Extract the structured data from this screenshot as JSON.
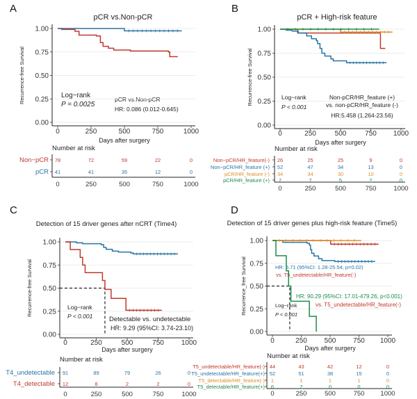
{
  "colors": {
    "red": "#c0392b",
    "blue": "#2874a6",
    "orange": "#e08e2b",
    "green": "#1e8a4c",
    "grid": "#e6e6e6"
  },
  "chart_data": [
    {
      "panel": "A",
      "type": "line",
      "subtype": "kaplan-meier",
      "title": "pCR vs.Non-pCR",
      "xlabel": "Days after surgery",
      "ylabel": "Recurrence-free Survival",
      "xlim": [
        0,
        1000
      ],
      "ylim": [
        0,
        1
      ],
      "xticks": [
        "0",
        "250",
        "500",
        "750",
        "1000"
      ],
      "yticks": [
        "0.00",
        "0.25",
        "0.50",
        "0.75",
        "1.00"
      ],
      "grid": true,
      "annotations": {
        "test": "Log−rank",
        "p": "P = 0.0025",
        "comparison": "pCR vs.Non-pCR",
        "hr": "HR: 0.086 (0.012-0.645)"
      },
      "risk_title": "Number at risk",
      "series": [
        {
          "name": "Non−pCR",
          "color": "red",
          "risk": [
            78,
            72,
            59,
            22,
            0
          ],
          "steps": [
            [
              0,
              1
            ],
            [
              30,
              0.99
            ],
            [
              130,
              0.97
            ],
            [
              160,
              0.93
            ],
            [
              290,
              0.92
            ],
            [
              320,
              0.85
            ],
            [
              340,
              0.81
            ],
            [
              380,
              0.79
            ],
            [
              420,
              0.77
            ],
            [
              545,
              0.76
            ],
            [
              830,
              0.75
            ],
            [
              840,
              0.7
            ],
            [
              900,
              0.7
            ]
          ]
        },
        {
          "name": "pCR",
          "color": "blue",
          "risk": [
            41,
            41,
            35,
            12,
            0
          ],
          "steps": [
            [
              0,
              1
            ],
            [
              495,
              1
            ],
            [
              500,
              0.975
            ],
            [
              930,
              0.975
            ]
          ]
        }
      ]
    },
    {
      "panel": "B",
      "type": "line",
      "subtype": "kaplan-meier",
      "title": "pCR + High-risk feature",
      "xlabel": "Days after surgery",
      "ylabel": "Recurrence-free Survival",
      "xlim": [
        0,
        1000
      ],
      "ylim": [
        0,
        1
      ],
      "xticks": [
        "0",
        "250",
        "500",
        "750",
        "1000"
      ],
      "yticks": [
        "0.00",
        "0.25",
        "0.50",
        "0.75",
        "1.00"
      ],
      "grid": true,
      "annotations": {
        "test": "Log−rank",
        "p": "P < 0.001",
        "comparison": "Non-pCR/HR_feature (+)",
        "comparison2": "vs. non-pCR/HR_feature (-)",
        "hr": "HR:5.458 (1.264-23.56)"
      },
      "risk_title": "Number at risk",
      "series": [
        {
          "name": "Non−pCR/HR_feature(-)",
          "color": "red",
          "risk": [
            26,
            25,
            25,
            9,
            0
          ],
          "steps": [
            [
              0,
              1
            ],
            [
              140,
              1
            ],
            [
              145,
              0.96
            ],
            [
              825,
              0.96
            ],
            [
              830,
              0.8
            ],
            [
              870,
              0.8
            ]
          ]
        },
        {
          "name": "Non−pCR/HR_feature (+)",
          "color": "blue",
          "risk": [
            52,
            47,
            34,
            13,
            0
          ],
          "steps": [
            [
              0,
              1
            ],
            [
              50,
              0.99
            ],
            [
              100,
              0.98
            ],
            [
              150,
              0.96
            ],
            [
              220,
              0.93
            ],
            [
              260,
              0.9
            ],
            [
              300,
              0.88
            ],
            [
              310,
              0.85
            ],
            [
              330,
              0.8
            ],
            [
              345,
              0.75
            ],
            [
              370,
              0.72
            ],
            [
              420,
              0.69
            ],
            [
              440,
              0.67
            ],
            [
              550,
              0.65
            ],
            [
              880,
              0.65
            ]
          ]
        },
        {
          "name": "pCR/HR_feature (-)",
          "color": "orange",
          "risk": [
            34,
            34,
            30,
            10,
            0
          ],
          "steps": [
            [
              0,
              1
            ],
            [
              495,
              1
            ],
            [
              500,
              0.97
            ],
            [
              930,
              0.97
            ]
          ]
        },
        {
          "name": "pCR/HR_feature (+)",
          "color": "green",
          "risk": [
            7,
            7,
            5,
            2,
            0
          ],
          "steps": [
            [
              0,
              1
            ],
            [
              820,
              1
            ]
          ]
        }
      ]
    },
    {
      "panel": "C",
      "type": "line",
      "subtype": "kaplan-meier",
      "title": "Detection of 15 driver genes after nCRT (Time4)",
      "xlabel": "Days after surgery",
      "ylabel": "Recurrence-free Survival",
      "xlim": [
        0,
        1000
      ],
      "ylim": [
        0,
        1
      ],
      "xticks": [
        "0",
        "250",
        "500",
        "750",
        "1000"
      ],
      "yticks": [
        "0.00",
        "0.25",
        "0.50",
        "0.75",
        "1.00"
      ],
      "grid": true,
      "median_line": 320,
      "annotations": {
        "test": "Log−rank",
        "p": "P < 0.001",
        "comparison": "Detectable vs. undetectable",
        "hr": "HR: 9.29 (95%CI: 3.74-23.10)"
      },
      "risk_title": "Number at risk",
      "series": [
        {
          "name": "T4_undetectable",
          "color": "blue",
          "risk": [
            91,
            89,
            79,
            26,
            0
          ],
          "steps": [
            [
              0,
              1
            ],
            [
              90,
              0.99
            ],
            [
              140,
              0.98
            ],
            [
              290,
              0.97
            ],
            [
              310,
              0.94
            ],
            [
              330,
              0.92
            ],
            [
              380,
              0.9
            ],
            [
              430,
              0.89
            ],
            [
              530,
              0.88
            ],
            [
              550,
              0.87
            ],
            [
              910,
              0.87
            ]
          ]
        },
        {
          "name": "T4_detectable",
          "color": "red",
          "risk": [
            12,
            8,
            2,
            2,
            0
          ],
          "steps": [
            [
              0,
              1
            ],
            [
              40,
              0.917
            ],
            [
              120,
              0.833
            ],
            [
              140,
              0.75
            ],
            [
              160,
              0.667
            ],
            [
              300,
              0.583
            ],
            [
              320,
              0.486
            ],
            [
              370,
              0.389
            ],
            [
              490,
              0.26
            ],
            [
              780,
              0.26
            ]
          ]
        }
      ]
    },
    {
      "panel": "D",
      "type": "line",
      "subtype": "kaplan-meier",
      "title": "Detection of 15 driver genes plus high-risk feature (Time5)",
      "xlabel": "Days after surgery",
      "ylabel": "Recurrence_free Survival",
      "xlim": [
        0,
        1000
      ],
      "ylim": [
        0,
        1
      ],
      "xticks": [
        "0",
        "250",
        "500",
        "750",
        "1000"
      ],
      "yticks": [
        "0.00",
        "0.25",
        "0.50",
        "0.75",
        "1.00"
      ],
      "grid": true,
      "median_line": 150,
      "annotations": {
        "test": "Log−rank",
        "p": "P < 0.001",
        "hr_blue": "HR: 5.71 (95%CI: 1.28-25.54, p=0.02)",
        "vs_blue": "vs. T5_undetectable/HR_feature(-)",
        "hr_green": "HR: 90.29 (95%CI: 17.01-479.26, p<0.001)",
        "vs_green": "vs. T5_undetectable/HR_feature(-)"
      },
      "risk_title": "Number at risk",
      "series": [
        {
          "name": "T5_undetectable/HR_feature(-)",
          "color": "red",
          "risk": [
            44,
            43,
            42,
            12,
            0
          ],
          "steps": [
            [
              0,
              1
            ],
            [
              500,
              1
            ],
            [
              505,
              0.96
            ],
            [
              920,
              0.96
            ]
          ]
        },
        {
          "name": "T5_undetectable/HR_feature(+)",
          "color": "blue",
          "risk": [
            52,
            51,
            38,
            15,
            0
          ],
          "steps": [
            [
              0,
              1
            ],
            [
              90,
              0.98
            ],
            [
              300,
              0.97
            ],
            [
              320,
              0.95
            ],
            [
              330,
              0.9
            ],
            [
              340,
              0.86
            ],
            [
              360,
              0.83
            ],
            [
              400,
              0.8
            ],
            [
              430,
              0.78
            ],
            [
              540,
              0.77
            ],
            [
              890,
              0.77
            ]
          ]
        },
        {
          "name": "T5_detectable/HR_feature(-)",
          "color": "orange",
          "risk": [
            1,
            1,
            1,
            1,
            0
          ],
          "steps": [
            [
              0,
              1
            ],
            [
              770,
              1
            ]
          ]
        },
        {
          "name": "T5_detectable/HR_feature(+)",
          "color": "green",
          "risk": [
            6,
            2,
            0,
            0,
            0
          ],
          "steps": [
            [
              0,
              1
            ],
            [
              30,
              0.833
            ],
            [
              120,
              0.667
            ],
            [
              140,
              0.5
            ],
            [
              160,
              0.333
            ],
            [
              320,
              0.167
            ],
            [
              380,
              0
            ]
          ]
        }
      ]
    }
  ]
}
